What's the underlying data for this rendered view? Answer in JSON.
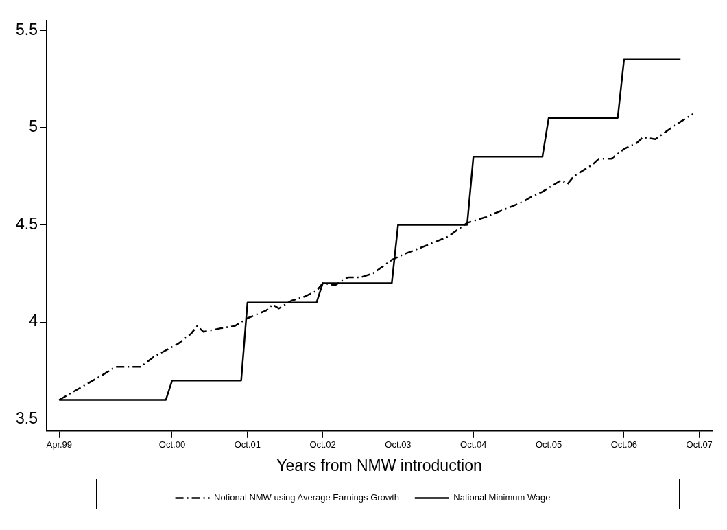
{
  "chart_data": {
    "type": "line",
    "xlabel": "Years from NMW introduction",
    "xlim": [
      "1999-02",
      "2007-12"
    ],
    "xticks": [
      {
        "value": "1999-04",
        "label": "Apr.99"
      },
      {
        "value": "2000-10",
        "label": "Oct.00"
      },
      {
        "value": "2001-10",
        "label": "Oct.01"
      },
      {
        "value": "2002-10",
        "label": "Oct.02"
      },
      {
        "value": "2003-10",
        "label": "Oct.03"
      },
      {
        "value": "2004-10",
        "label": "Oct.04"
      },
      {
        "value": "2005-10",
        "label": "Oct.05"
      },
      {
        "value": "2006-10",
        "label": "Oct.06"
      },
      {
        "value": "2007-10",
        "label": "Oct.07"
      }
    ],
    "ylim": [
      3.44,
      5.55
    ],
    "yticks": [
      3.5,
      4,
      4.5,
      5,
      5.5
    ],
    "grid": false,
    "legend": "bottom",
    "marker": "none",
    "series": [
      {
        "name": "Notional NMW using Average Earnings Growth",
        "color": "#000000",
        "line_style": "dashed",
        "x": [
          "1999-04",
          "1999-11",
          "2000-01",
          "2000-05",
          "2000-07",
          "2000-11",
          "2001-01",
          "2001-02",
          "2001-03",
          "2001-06",
          "2001-08",
          "2001-10",
          "2002-01",
          "2002-02",
          "2002-03",
          "2002-05",
          "2002-07",
          "2002-09",
          "2002-10",
          "2002-12",
          "2003-02",
          "2003-04",
          "2003-06",
          "2003-09",
          "2003-11",
          "2004-03",
          "2004-06",
          "2004-09",
          "2004-12",
          "2005-03",
          "2005-06",
          "2005-07",
          "2005-09",
          "2005-11",
          "2005-12",
          "2006-01",
          "2006-02",
          "2006-05",
          "2006-06",
          "2006-08",
          "2006-10",
          "2006-12",
          "2007-01",
          "2007-03",
          "2007-06",
          "2007-07",
          "2007-09"
        ],
        "values": [
          3.6,
          3.73,
          3.77,
          3.77,
          3.82,
          3.89,
          3.94,
          3.98,
          3.95,
          3.97,
          3.98,
          4.02,
          4.06,
          4.09,
          4.07,
          4.11,
          4.13,
          4.16,
          4.2,
          4.19,
          4.23,
          4.23,
          4.25,
          4.32,
          4.35,
          4.4,
          4.44,
          4.51,
          4.54,
          4.58,
          4.62,
          4.64,
          4.67,
          4.71,
          4.73,
          4.71,
          4.75,
          4.81,
          4.84,
          4.84,
          4.89,
          4.92,
          4.95,
          4.94,
          5.01,
          5.03,
          5.07
        ]
      },
      {
        "name": "National Minimum Wage",
        "color": "#000000",
        "line_style": "solid",
        "x": [
          "1999-04",
          "2000-09",
          "2000-10",
          "2001-09",
          "2001-10",
          "2002-09",
          "2002-10",
          "2003-09",
          "2003-10",
          "2004-09",
          "2004-10",
          "2005-09",
          "2005-10",
          "2006-09",
          "2006-10",
          "2007-07"
        ],
        "values": [
          3.6,
          3.6,
          3.7,
          3.7,
          4.1,
          4.1,
          4.2,
          4.2,
          4.5,
          4.5,
          4.85,
          4.85,
          5.05,
          5.05,
          5.35,
          5.35
        ]
      }
    ]
  }
}
